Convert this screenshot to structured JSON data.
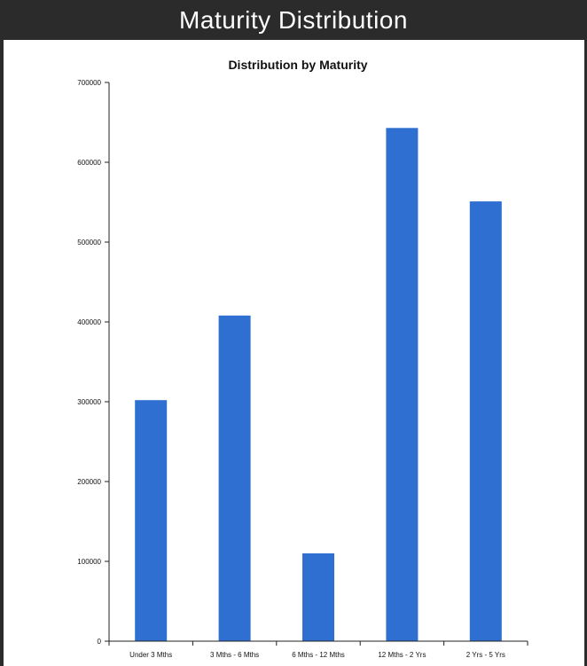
{
  "banner": {
    "title": "Maturity Distribution"
  },
  "colors": {
    "banner_background": "#2b2b2b",
    "banner_text": "#ffffff",
    "bar": "#2e6fd1",
    "axis": "#222222"
  },
  "chart_data": {
    "type": "bar",
    "title": "Distribution by Maturity",
    "xlabel": "",
    "ylabel": "",
    "categories": [
      "Under 3 Mths",
      "3 Mths - 6 Mths",
      "6 Mths - 12 Mths",
      "12 Mths - 2 Yrs",
      "2 Yrs - 5 Yrs"
    ],
    "values": [
      302000,
      408000,
      110000,
      643000,
      551000
    ],
    "ylim": [
      0,
      700000
    ],
    "yticks": [
      0,
      100000,
      200000,
      300000,
      400000,
      500000,
      600000,
      700000
    ],
    "ytick_labels": [
      "0",
      "100000",
      "200000",
      "300000",
      "400000",
      "500000",
      "600000",
      "700000"
    ],
    "grid": false,
    "legend": "none"
  }
}
